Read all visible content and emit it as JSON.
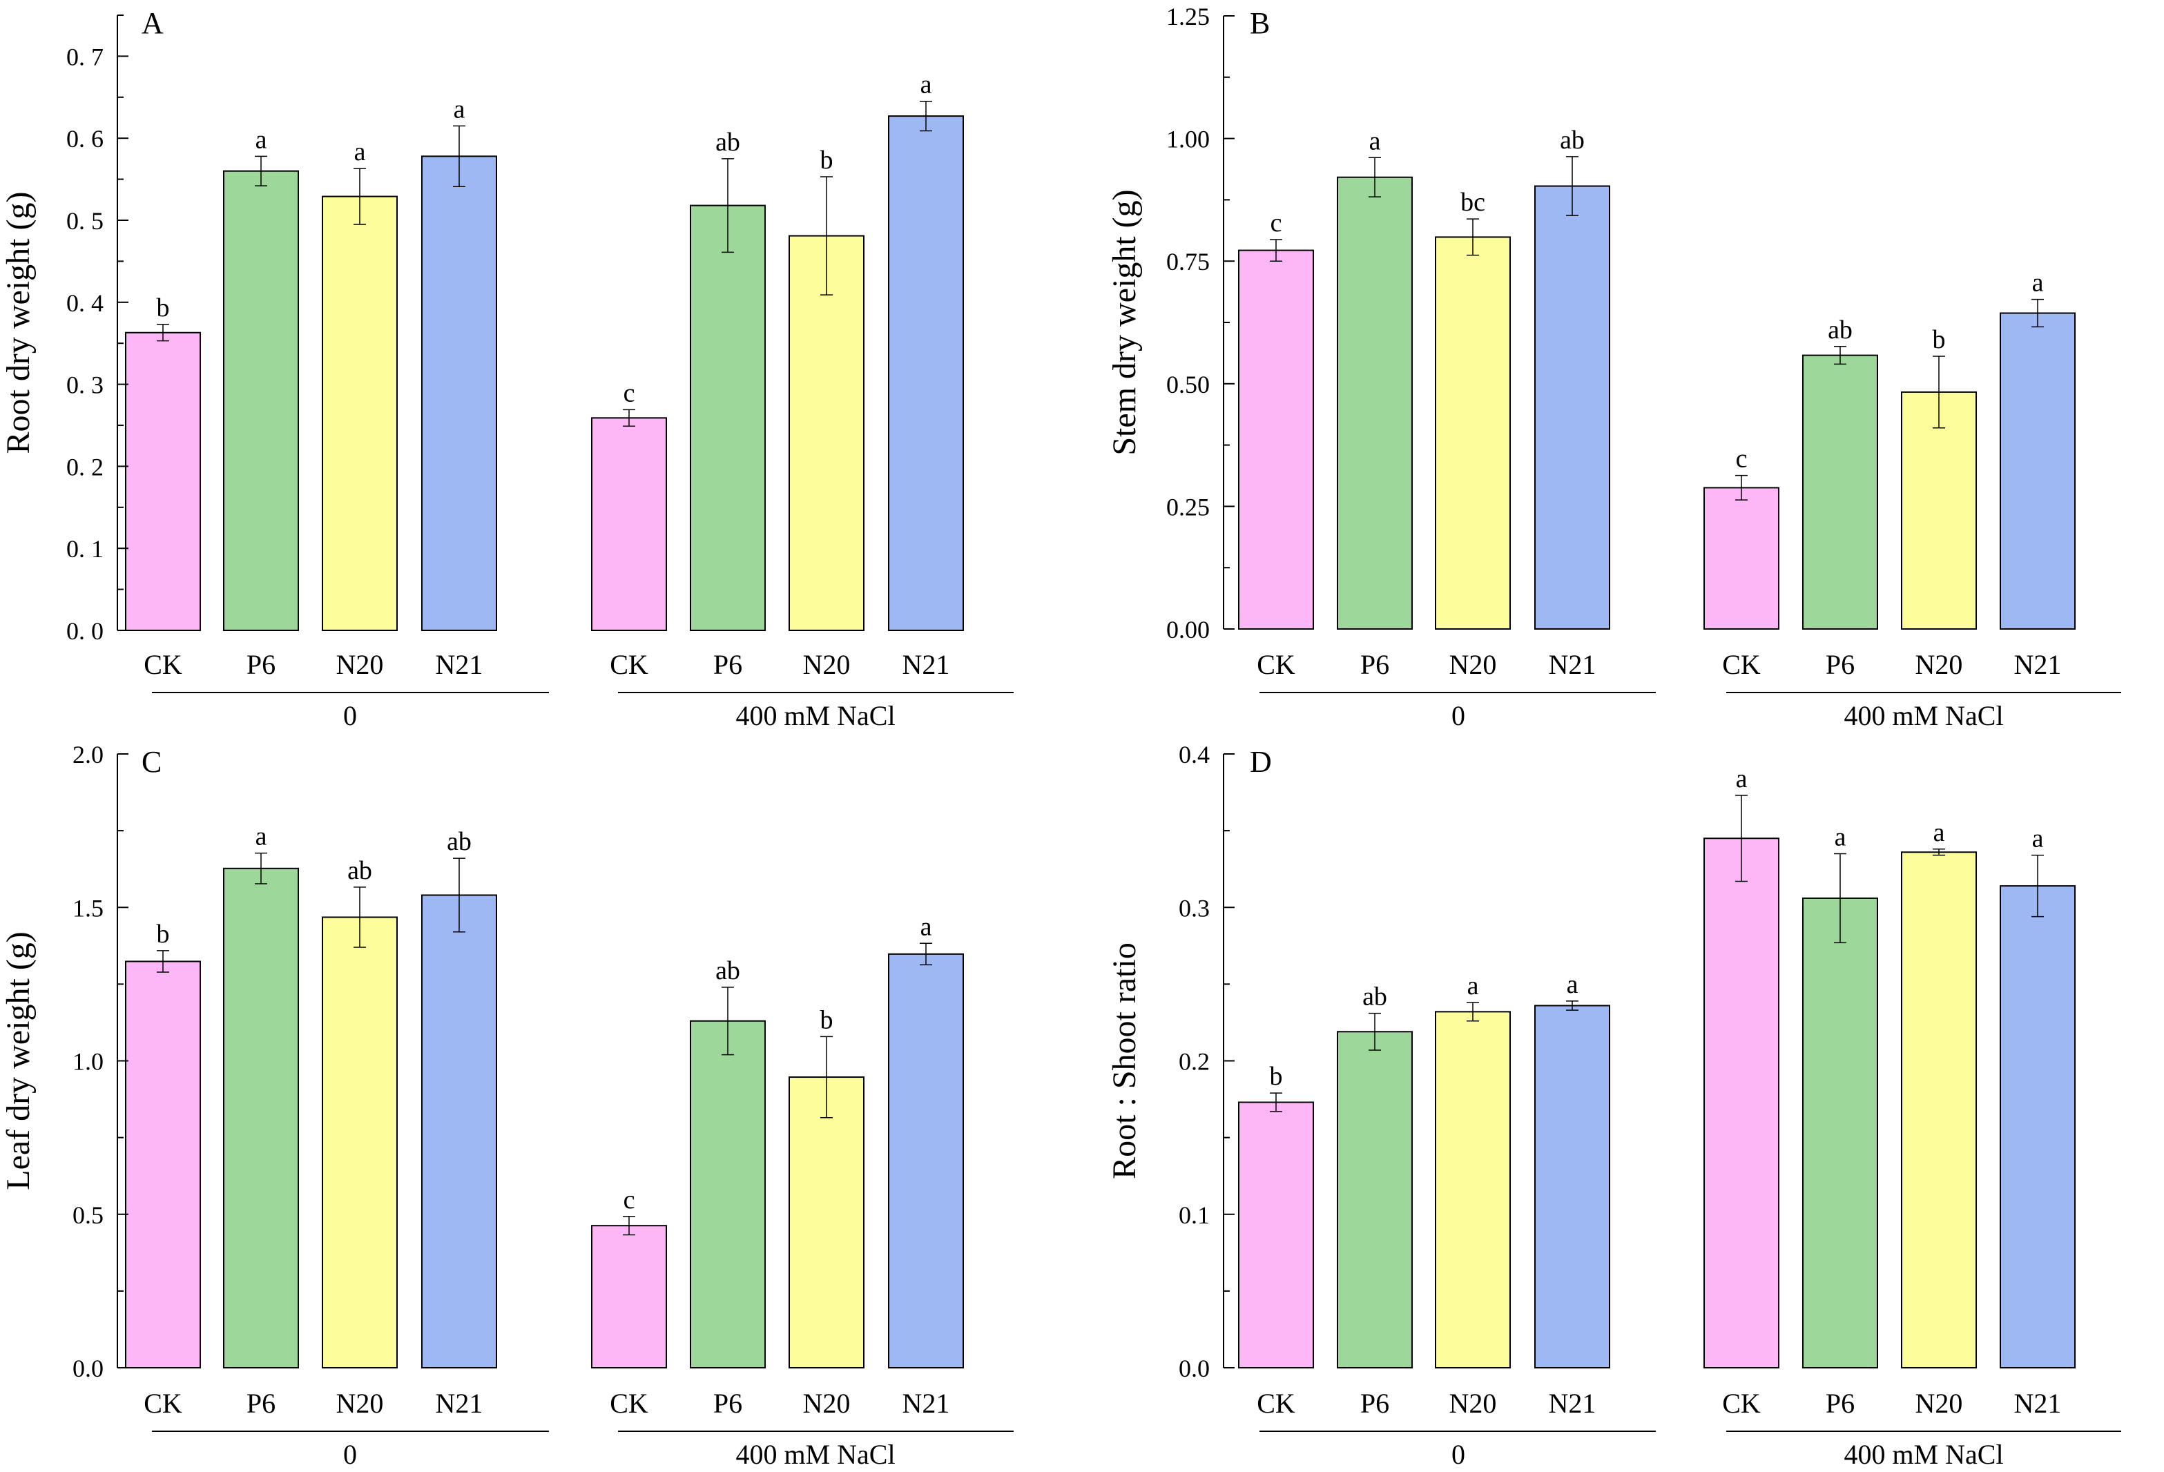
{
  "figure": {
    "colors": {
      "CK": "#fdb7f6",
      "P6": "#9ed79a",
      "N20": "#fdfd9b",
      "N21": "#9db8f2",
      "axis": "#000000"
    },
    "group_labels": [
      "0",
      "400 mM NaCl"
    ]
  },
  "chart_data": [
    {
      "type": "bar",
      "panel": "A",
      "ylabel": "Root dry weight (g)",
      "ylim": [
        0,
        0.75
      ],
      "yticks": [
        0,
        0.1,
        0.2,
        0.3,
        0.4,
        0.5,
        0.6,
        0.7
      ],
      "yticklabels": [
        "0. 0",
        "0. 1",
        "0. 2",
        "0. 3",
        "0. 4",
        "0. 5",
        "0. 6",
        "0. 7"
      ],
      "categories": [
        "CK",
        "P6",
        "N20",
        "N21",
        "CK",
        "P6",
        "N20",
        "N21"
      ],
      "groups": [
        "0",
        "400 mM NaCl"
      ],
      "values": [
        0.363,
        0.56,
        0.529,
        0.578,
        0.259,
        0.518,
        0.481,
        0.627
      ],
      "errors": [
        0.01,
        0.018,
        0.034,
        0.037,
        0.01,
        0.057,
        0.072,
        0.018
      ],
      "letters": [
        "b",
        "a",
        "a",
        "a",
        "c",
        "ab",
        "b",
        "a"
      ]
    },
    {
      "type": "bar",
      "panel": "B",
      "ylabel": "Stem dry weight (g)",
      "ylim": [
        0,
        1.25
      ],
      "yticks": [
        0,
        0.25,
        0.5,
        0.75,
        1.0,
        1.25
      ],
      "yticklabels": [
        "0.00",
        "0.25",
        "0.50",
        "0.75",
        "1.00",
        "1.25"
      ],
      "categories": [
        "CK",
        "P6",
        "N20",
        "N21",
        "CK",
        "P6",
        "N20",
        "N21"
      ],
      "groups": [
        "0",
        "400 mM NaCl"
      ],
      "values": [
        0.772,
        0.921,
        0.799,
        0.903,
        0.288,
        0.558,
        0.483,
        0.644
      ],
      "errors": [
        0.022,
        0.04,
        0.037,
        0.06,
        0.025,
        0.018,
        0.073,
        0.028
      ],
      "letters": [
        "c",
        "a",
        "bc",
        "ab",
        "c",
        "ab",
        "b",
        "a"
      ]
    },
    {
      "type": "bar",
      "panel": "C",
      "ylabel": "Leaf dry weight (g)",
      "ylim": [
        0,
        2.0
      ],
      "yticks": [
        0,
        0.5,
        1.0,
        1.5,
        2.0
      ],
      "yticklabels": [
        "0.0",
        "0.5",
        "1.0",
        "1.5",
        "2.0"
      ],
      "categories": [
        "CK",
        "P6",
        "N20",
        "N21",
        "CK",
        "P6",
        "N20",
        "N21"
      ],
      "groups": [
        "0",
        "400 mM NaCl"
      ],
      "values": [
        1.324,
        1.627,
        1.468,
        1.54,
        0.463,
        1.13,
        0.947,
        1.348
      ],
      "errors": [
        0.035,
        0.05,
        0.098,
        0.12,
        0.03,
        0.11,
        0.132,
        0.035
      ],
      "letters": [
        "b",
        "a",
        "ab",
        "ab",
        "c",
        "ab",
        "b",
        "a"
      ]
    },
    {
      "type": "bar",
      "panel": "D",
      "ylabel": "Root : Shoot ratio",
      "ylim": [
        0,
        0.4
      ],
      "yticks": [
        0,
        0.1,
        0.2,
        0.3,
        0.4
      ],
      "yticklabels": [
        "0.0",
        "0.1",
        "0.2",
        "0.3",
        "0.4"
      ],
      "categories": [
        "CK",
        "P6",
        "N20",
        "N21",
        "CK",
        "P6",
        "N20",
        "N21"
      ],
      "groups": [
        "0",
        "400 mM NaCl"
      ],
      "values": [
        0.173,
        0.219,
        0.232,
        0.236,
        0.345,
        0.306,
        0.336,
        0.314
      ],
      "errors": [
        0.006,
        0.012,
        0.006,
        0.003,
        0.028,
        0.029,
        0.002,
        0.02
      ],
      "letters": [
        "b",
        "ab",
        "a",
        "a",
        "a",
        "a",
        "a",
        "a"
      ]
    }
  ]
}
